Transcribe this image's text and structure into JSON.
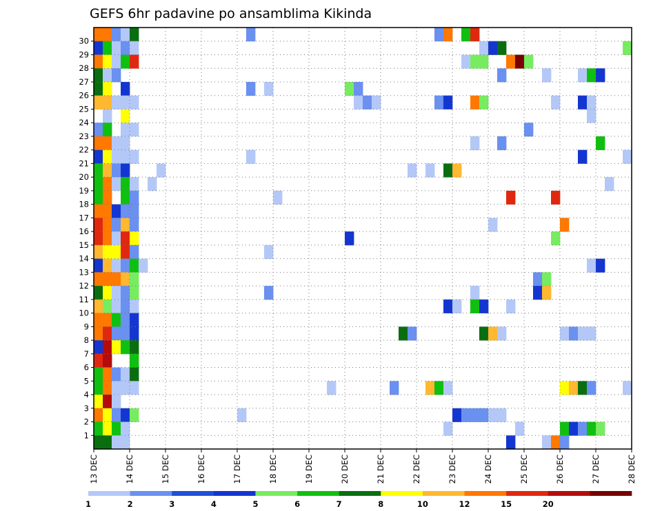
{
  "chart_data": {
    "type": "heatmap",
    "title": "GEFS 6hr padavine po ansamblima Kikinda",
    "x_ticks": [
      "13 DEC",
      "14 DEC",
      "15 DEC",
      "16 DEC",
      "17 DEC",
      "18 DEC",
      "19 DEC",
      "20 DEC",
      "21 DEC",
      "22 DEC",
      "23 DEC",
      "24 DEC",
      "25 DEC",
      "26 DEC",
      "27 DEC",
      "28 DEC"
    ],
    "x_steps_per_day": 4,
    "y_ticks": [
      "1",
      "2",
      "3",
      "4",
      "5",
      "6",
      "7",
      "8",
      "9",
      "10",
      "11",
      "12",
      "13",
      "14",
      "15",
      "16",
      "17",
      "18",
      "19",
      "20",
      "21",
      "22",
      "23",
      "24",
      "25",
      "26",
      "27",
      "28",
      "29",
      "30"
    ],
    "members": 31,
    "member_start": 0,
    "grid": "dotted",
    "colorbar": {
      "labels": [
        "1",
        "2",
        "3",
        "4",
        "5",
        "6",
        "7",
        "8",
        "10",
        "12",
        "15",
        "20"
      ],
      "colors": [
        "#b4c8f8",
        "#6a90f0",
        "#2050d8",
        "#1436d0",
        "#78ec60",
        "#10c010",
        "#0a6e10",
        "#ffff00",
        "#ffb830",
        "#ff7800",
        "#e02810",
        "#b40c0c",
        "#780000"
      ]
    },
    "note_cells": "cells: [member, time_step(6h from 13 DEC 00), color_class(0-12)]",
    "cells": [
      [
        30,
        0,
        9
      ],
      [
        30,
        1,
        9
      ],
      [
        30,
        2,
        1
      ],
      [
        30,
        3,
        0
      ],
      [
        30,
        4,
        6
      ],
      [
        30,
        17,
        1
      ],
      [
        30,
        38,
        1
      ],
      [
        30,
        39,
        9
      ],
      [
        30,
        41,
        5
      ],
      [
        30,
        42,
        10
      ],
      [
        29,
        0,
        3
      ],
      [
        29,
        1,
        5
      ],
      [
        29,
        2,
        0
      ],
      [
        29,
        3,
        1
      ],
      [
        29,
        4,
        0
      ],
      [
        29,
        43,
        0
      ],
      [
        29,
        44,
        3
      ],
      [
        29,
        45,
        6
      ],
      [
        29,
        59,
        4
      ],
      [
        28,
        0,
        9
      ],
      [
        28,
        1,
        7
      ],
      [
        28,
        2,
        0
      ],
      [
        28,
        3,
        5
      ],
      [
        28,
        4,
        10
      ],
      [
        28,
        41,
        0
      ],
      [
        28,
        42,
        4
      ],
      [
        28,
        43,
        4
      ],
      [
        28,
        46,
        9
      ],
      [
        28,
        47,
        12
      ],
      [
        28,
        48,
        4
      ],
      [
        27,
        0,
        6
      ],
      [
        27,
        1,
        0
      ],
      [
        27,
        2,
        1
      ],
      [
        27,
        45,
        1
      ],
      [
        27,
        50,
        0
      ],
      [
        27,
        54,
        0
      ],
      [
        27,
        55,
        5
      ],
      [
        27,
        56,
        3
      ],
      [
        26,
        0,
        6
      ],
      [
        26,
        1,
        7
      ],
      [
        26,
        3,
        3
      ],
      [
        26,
        17,
        1
      ],
      [
        26,
        19,
        0
      ],
      [
        26,
        28,
        4
      ],
      [
        26,
        29,
        1
      ],
      [
        25,
        0,
        8
      ],
      [
        25,
        1,
        8
      ],
      [
        25,
        2,
        0
      ],
      [
        25,
        3,
        0
      ],
      [
        25,
        4,
        0
      ],
      [
        25,
        29,
        0
      ],
      [
        25,
        30,
        1
      ],
      [
        25,
        31,
        0
      ],
      [
        25,
        38,
        1
      ],
      [
        25,
        39,
        3
      ],
      [
        25,
        42,
        9
      ],
      [
        25,
        43,
        4
      ],
      [
        25,
        51,
        0
      ],
      [
        25,
        54,
        3
      ],
      [
        25,
        55,
        0
      ],
      [
        24,
        1,
        0
      ],
      [
        24,
        3,
        7
      ],
      [
        24,
        55,
        0
      ],
      [
        23,
        0,
        1
      ],
      [
        23,
        1,
        5
      ],
      [
        23,
        3,
        0
      ],
      [
        23,
        4,
        0
      ],
      [
        23,
        48,
        1
      ],
      [
        22,
        0,
        9
      ],
      [
        22,
        1,
        9
      ],
      [
        22,
        2,
        0
      ],
      [
        22,
        3,
        0
      ],
      [
        22,
        42,
        0
      ],
      [
        22,
        45,
        1
      ],
      [
        22,
        56,
        5
      ],
      [
        21,
        0,
        3
      ],
      [
        21,
        1,
        7
      ],
      [
        21,
        2,
        0
      ],
      [
        21,
        3,
        0
      ],
      [
        21,
        4,
        0
      ],
      [
        21,
        17,
        0
      ],
      [
        21,
        54,
        3
      ],
      [
        21,
        59,
        0
      ],
      [
        20,
        0,
        5
      ],
      [
        20,
        1,
        8
      ],
      [
        20,
        2,
        1
      ],
      [
        20,
        3,
        3
      ],
      [
        20,
        7,
        0
      ],
      [
        20,
        35,
        0
      ],
      [
        20,
        37,
        0
      ],
      [
        20,
        39,
        6
      ],
      [
        20,
        40,
        8
      ],
      [
        19,
        0,
        5
      ],
      [
        19,
        1,
        9
      ],
      [
        19,
        2,
        0
      ],
      [
        19,
        3,
        5
      ],
      [
        19,
        4,
        0
      ],
      [
        19,
        6,
        0
      ],
      [
        19,
        57,
        0
      ],
      [
        18,
        0,
        5
      ],
      [
        18,
        1,
        9
      ],
      [
        18,
        3,
        5
      ],
      [
        18,
        4,
        1
      ],
      [
        18,
        20,
        0
      ],
      [
        18,
        46,
        10
      ],
      [
        18,
        51,
        10
      ],
      [
        17,
        0,
        9
      ],
      [
        17,
        1,
        9
      ],
      [
        17,
        2,
        3
      ],
      [
        17,
        3,
        1
      ],
      [
        17,
        4,
        1
      ],
      [
        16,
        0,
        10
      ],
      [
        16,
        1,
        9
      ],
      [
        16,
        2,
        1
      ],
      [
        16,
        3,
        8
      ],
      [
        16,
        4,
        1
      ],
      [
        16,
        44,
        0
      ],
      [
        16,
        52,
        9
      ],
      [
        15,
        0,
        10
      ],
      [
        15,
        1,
        9
      ],
      [
        15,
        2,
        0
      ],
      [
        15,
        3,
        10
      ],
      [
        15,
        4,
        7
      ],
      [
        15,
        28,
        3
      ],
      [
        15,
        51,
        4
      ],
      [
        14,
        0,
        8
      ],
      [
        14,
        1,
        7
      ],
      [
        14,
        2,
        7
      ],
      [
        14,
        3,
        10
      ],
      [
        14,
        4,
        1
      ],
      [
        14,
        19,
        0
      ],
      [
        13,
        0,
        3
      ],
      [
        13,
        1,
        8
      ],
      [
        13,
        2,
        0
      ],
      [
        13,
        3,
        1
      ],
      [
        13,
        4,
        5
      ],
      [
        13,
        5,
        0
      ],
      [
        13,
        55,
        0
      ],
      [
        13,
        56,
        3
      ],
      [
        12,
        0,
        9
      ],
      [
        12,
        1,
        9
      ],
      [
        12,
        2,
        9
      ],
      [
        12,
        3,
        8
      ],
      [
        12,
        4,
        4
      ],
      [
        12,
        49,
        1
      ],
      [
        12,
        50,
        4
      ],
      [
        11,
        0,
        6
      ],
      [
        11,
        1,
        7
      ],
      [
        11,
        2,
        0
      ],
      [
        11,
        3,
        1
      ],
      [
        11,
        4,
        4
      ],
      [
        11,
        19,
        1
      ],
      [
        11,
        42,
        0
      ],
      [
        11,
        49,
        3
      ],
      [
        11,
        50,
        8
      ],
      [
        10,
        0,
        8
      ],
      [
        10,
        1,
        4
      ],
      [
        10,
        2,
        0
      ],
      [
        10,
        3,
        1
      ],
      [
        10,
        4,
        0
      ],
      [
        10,
        39,
        3
      ],
      [
        10,
        40,
        0
      ],
      [
        10,
        42,
        5
      ],
      [
        10,
        43,
        3
      ],
      [
        10,
        46,
        0
      ],
      [
        9,
        0,
        9
      ],
      [
        9,
        1,
        9
      ],
      [
        9,
        2,
        5
      ],
      [
        9,
        3,
        1
      ],
      [
        9,
        4,
        3
      ],
      [
        8,
        0,
        9
      ],
      [
        8,
        1,
        10
      ],
      [
        8,
        2,
        1
      ],
      [
        8,
        3,
        1
      ],
      [
        8,
        4,
        3
      ],
      [
        8,
        34,
        6
      ],
      [
        8,
        35,
        1
      ],
      [
        8,
        43,
        6
      ],
      [
        8,
        44,
        8
      ],
      [
        8,
        45,
        0
      ],
      [
        8,
        52,
        0
      ],
      [
        8,
        53,
        1
      ],
      [
        8,
        54,
        0
      ],
      [
        8,
        55,
        0
      ],
      [
        7,
        0,
        3
      ],
      [
        7,
        1,
        11
      ],
      [
        7,
        2,
        7
      ],
      [
        7,
        3,
        5
      ],
      [
        7,
        4,
        6
      ],
      [
        6,
        0,
        10
      ],
      [
        6,
        1,
        11
      ],
      [
        6,
        4,
        5
      ],
      [
        5,
        0,
        5
      ],
      [
        5,
        1,
        9
      ],
      [
        5,
        2,
        1
      ],
      [
        5,
        3,
        0
      ],
      [
        5,
        4,
        6
      ],
      [
        4,
        0,
        5
      ],
      [
        4,
        1,
        9
      ],
      [
        4,
        2,
        0
      ],
      [
        4,
        3,
        0
      ],
      [
        4,
        4,
        0
      ],
      [
        4,
        26,
        0
      ],
      [
        4,
        33,
        1
      ],
      [
        4,
        37,
        8
      ],
      [
        4,
        38,
        5
      ],
      [
        4,
        39,
        0
      ],
      [
        4,
        52,
        7
      ],
      [
        4,
        53,
        8
      ],
      [
        4,
        54,
        6
      ],
      [
        4,
        55,
        1
      ],
      [
        4,
        59,
        0
      ],
      [
        3,
        0,
        7
      ],
      [
        3,
        1,
        11
      ],
      [
        3,
        2,
        0
      ],
      [
        2,
        0,
        9
      ],
      [
        2,
        1,
        7
      ],
      [
        2,
        2,
        1
      ],
      [
        2,
        3,
        3
      ],
      [
        2,
        4,
        4
      ],
      [
        2,
        16,
        0
      ],
      [
        2,
        40,
        3
      ],
      [
        2,
        41,
        1
      ],
      [
        2,
        42,
        1
      ],
      [
        2,
        43,
        1
      ],
      [
        2,
        44,
        0
      ],
      [
        2,
        45,
        0
      ],
      [
        1,
        0,
        5
      ],
      [
        1,
        1,
        7
      ],
      [
        1,
        2,
        5
      ],
      [
        1,
        3,
        0
      ],
      [
        1,
        39,
        0
      ],
      [
        1,
        47,
        0
      ],
      [
        1,
        52,
        5
      ],
      [
        1,
        53,
        3
      ],
      [
        1,
        54,
        1
      ],
      [
        1,
        55,
        5
      ],
      [
        1,
        56,
        4
      ],
      [
        0,
        0,
        6
      ],
      [
        0,
        1,
        6
      ],
      [
        0,
        2,
        0
      ],
      [
        0,
        3,
        0
      ],
      [
        0,
        46,
        3
      ],
      [
        0,
        50,
        0
      ],
      [
        0,
        51,
        9
      ],
      [
        0,
        52,
        1
      ]
    ]
  }
}
